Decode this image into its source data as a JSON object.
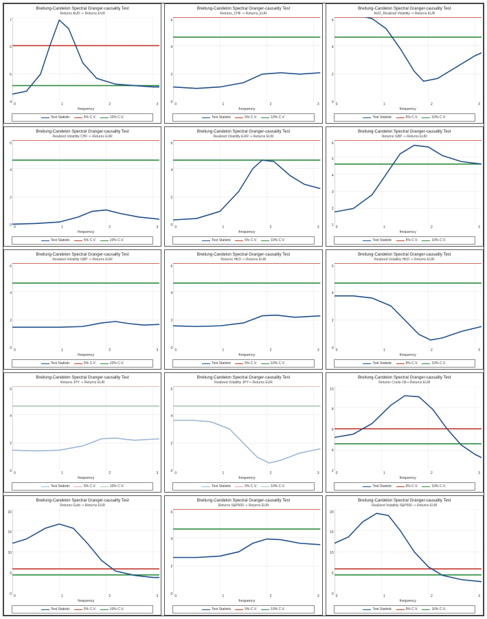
{
  "global": {
    "main_title": "Breitung-Candelon Spectral Granger-causality Test",
    "xlabel": "frequency",
    "legend": {
      "test_stat": "Test Statistic",
      "cv5": "5% C.V.",
      "cv10": "10% C.V."
    },
    "colors": {
      "test": "#1f4e8c",
      "cv5": "#c0392b",
      "cv10": "#2e8b3d",
      "test_faded": "#9db6d6",
      "cv5_faded": "#d9a6a1",
      "cv10_faded": "#a9c9ad",
      "grid": "#e8e8e8",
      "axis": "#888888",
      "text": "#333333",
      "background": "#ffffff"
    },
    "line_width": 1.4,
    "xlim": [
      0,
      3.14
    ],
    "xticks": [
      0,
      1,
      2,
      3
    ],
    "title_fontsize": 6,
    "subtitle_fontsize": 5,
    "tick_fontsize": 5,
    "legend_fontsize": 5
  },
  "panels": [
    {
      "subtitle": "Returns AUD ⇒ Returns EUR",
      "ylim": [
        4,
        7
      ],
      "yticks": [
        4,
        5,
        6,
        7
      ],
      "cv5": 6.0,
      "cv10": 4.6,
      "faded": false,
      "curve": [
        [
          0,
          4.3
        ],
        [
          0.3,
          4.4
        ],
        [
          0.6,
          5.0
        ],
        [
          0.8,
          6.0
        ],
        [
          1.0,
          6.9
        ],
        [
          1.2,
          6.6
        ],
        [
          1.5,
          5.4
        ],
        [
          1.8,
          4.85
        ],
        [
          2.2,
          4.65
        ],
        [
          2.6,
          4.6
        ],
        [
          3.0,
          4.55
        ],
        [
          3.14,
          4.55
        ]
      ]
    },
    {
      "subtitle": "Returns_CHF ⇒ Returns_EUR",
      "ylim": [
        0,
        6
      ],
      "yticks": [
        0,
        2,
        4,
        6
      ],
      "cv5": 6.0,
      "cv10": 4.6,
      "faded": false,
      "curve": [
        [
          0,
          1.1
        ],
        [
          0.5,
          1.0
        ],
        [
          1.0,
          1.1
        ],
        [
          1.5,
          1.4
        ],
        [
          1.9,
          2.0
        ],
        [
          2.3,
          2.1
        ],
        [
          2.7,
          2.0
        ],
        [
          3.14,
          2.1
        ]
      ]
    },
    {
      "subtitle": "AUD_Realized Volatility ⇒ Returns EUR",
      "ylim": [
        0,
        6
      ],
      "yticks": [
        0,
        2,
        4,
        6
      ],
      "cv5": 6.0,
      "cv10": 4.6,
      "faded": false,
      "curve": [
        [
          0,
          6.3
        ],
        [
          0.4,
          6.2
        ],
        [
          0.8,
          5.9
        ],
        [
          1.1,
          5.2
        ],
        [
          1.4,
          3.8
        ],
        [
          1.7,
          2.2
        ],
        [
          1.9,
          1.5
        ],
        [
          2.2,
          1.7
        ],
        [
          2.6,
          2.5
        ],
        [
          3.0,
          3.3
        ],
        [
          3.14,
          3.5
        ]
      ]
    },
    {
      "subtitle": "Realized Volatility CHF ⇒ Returns EUR",
      "ylim": [
        0,
        6
      ],
      "yticks": [
        0,
        2,
        4,
        6
      ],
      "cv5": 6.0,
      "cv10": 4.6,
      "faded": false,
      "curve": [
        [
          0,
          0.1
        ],
        [
          0.5,
          0.15
        ],
        [
          1.0,
          0.25
        ],
        [
          1.4,
          0.6
        ],
        [
          1.7,
          1.0
        ],
        [
          2.0,
          1.1
        ],
        [
          2.3,
          0.85
        ],
        [
          2.7,
          0.6
        ],
        [
          3.14,
          0.45
        ]
      ]
    },
    {
      "subtitle": "Realized Volatility EUR ⇒ Returns EUR",
      "ylim": [
        0,
        6
      ],
      "yticks": [
        0,
        2,
        4,
        6
      ],
      "cv5": 6.0,
      "cv10": 4.6,
      "faded": false,
      "curve": [
        [
          0,
          0.4
        ],
        [
          0.5,
          0.5
        ],
        [
          1.0,
          1.0
        ],
        [
          1.4,
          2.4
        ],
        [
          1.7,
          4.0
        ],
        [
          1.9,
          4.6
        ],
        [
          2.15,
          4.5
        ],
        [
          2.5,
          3.5
        ],
        [
          2.8,
          2.9
        ],
        [
          3.14,
          2.6
        ]
      ]
    },
    {
      "subtitle": "Returns GBP ⇒ Returns EUR",
      "ylim": [
        1,
        6
      ],
      "yticks": [
        1,
        2,
        3,
        4,
        5,
        6
      ],
      "cv5": 6.0,
      "cv10": 4.6,
      "faded": false,
      "curve": [
        [
          0,
          1.8
        ],
        [
          0.4,
          2.0
        ],
        [
          0.8,
          2.8
        ],
        [
          1.1,
          4.0
        ],
        [
          1.4,
          5.2
        ],
        [
          1.7,
          5.7
        ],
        [
          2.0,
          5.6
        ],
        [
          2.3,
          5.1
        ],
        [
          2.7,
          4.75
        ],
        [
          3.14,
          4.6
        ]
      ]
    },
    {
      "subtitle": "Realized Volatility GBP ⇒ Returns EUR",
      "ylim": [
        0,
        6
      ],
      "yticks": [
        0,
        2,
        4,
        6
      ],
      "cv5": 6.0,
      "cv10": 4.6,
      "faded": false,
      "curve": [
        [
          0,
          1.5
        ],
        [
          0.5,
          1.5
        ],
        [
          1.0,
          1.5
        ],
        [
          1.5,
          1.55
        ],
        [
          1.9,
          1.8
        ],
        [
          2.2,
          1.9
        ],
        [
          2.5,
          1.75
        ],
        [
          2.8,
          1.65
        ],
        [
          3.14,
          1.7
        ]
      ]
    },
    {
      "subtitle": "Returns HKD ⇒ Returns EUR",
      "ylim": [
        0,
        6
      ],
      "yticks": [
        0,
        2,
        4,
        6
      ],
      "cv5": 6.0,
      "cv10": 4.6,
      "faded": false,
      "curve": [
        [
          0,
          1.6
        ],
        [
          0.5,
          1.55
        ],
        [
          1.0,
          1.6
        ],
        [
          1.5,
          1.8
        ],
        [
          1.9,
          2.3
        ],
        [
          2.2,
          2.35
        ],
        [
          2.6,
          2.2
        ],
        [
          3.14,
          2.3
        ]
      ]
    },
    {
      "subtitle": "Realized Volatility HKD ⇒ Returns EUR",
      "ylim": [
        0,
        6
      ],
      "yticks": [
        0,
        2,
        4,
        6
      ],
      "cv5": 6.0,
      "cv10": 4.6,
      "faded": false,
      "curve": [
        [
          0,
          3.7
        ],
        [
          0.4,
          3.7
        ],
        [
          0.8,
          3.55
        ],
        [
          1.2,
          3.0
        ],
        [
          1.5,
          2.0
        ],
        [
          1.8,
          1.0
        ],
        [
          2.05,
          0.6
        ],
        [
          2.3,
          0.75
        ],
        [
          2.7,
          1.2
        ],
        [
          3.14,
          1.55
        ]
      ]
    },
    {
      "subtitle": "Returns JPY ⇒ Returns EUR",
      "ylim": [
        0,
        6
      ],
      "yticks": [
        0,
        2,
        4,
        6
      ],
      "cv5": 6.0,
      "cv10": 4.6,
      "faded": true,
      "curve": [
        [
          0,
          1.5
        ],
        [
          0.5,
          1.45
        ],
        [
          1.0,
          1.5
        ],
        [
          1.5,
          1.8
        ],
        [
          1.9,
          2.3
        ],
        [
          2.2,
          2.35
        ],
        [
          2.6,
          2.2
        ],
        [
          3.14,
          2.3
        ]
      ]
    },
    {
      "subtitle": "Realized Volatility JPY⇒ Returns EUR",
      "ylim": [
        0,
        6
      ],
      "yticks": [
        0,
        2,
        4,
        6
      ],
      "cv5": 6.0,
      "cv10": 4.6,
      "faded": true,
      "curve": [
        [
          0,
          3.6
        ],
        [
          0.4,
          3.6
        ],
        [
          0.8,
          3.5
        ],
        [
          1.2,
          3.0
        ],
        [
          1.5,
          2.0
        ],
        [
          1.8,
          1.0
        ],
        [
          2.05,
          0.6
        ],
        [
          2.3,
          0.8
        ],
        [
          2.7,
          1.3
        ],
        [
          3.14,
          1.6
        ]
      ]
    },
    {
      "subtitle": "Returns Crude Oil⇒ Returns EUR",
      "ylim": [
        2,
        10
      ],
      "yticks": [
        2,
        4,
        6,
        8,
        10
      ],
      "cv5": 6.0,
      "cv10": 4.6,
      "faded": false,
      "curve": [
        [
          0,
          5.2
        ],
        [
          0.4,
          5.5
        ],
        [
          0.8,
          6.5
        ],
        [
          1.2,
          8.2
        ],
        [
          1.5,
          9.1
        ],
        [
          1.8,
          9.0
        ],
        [
          2.1,
          7.8
        ],
        [
          2.4,
          6.0
        ],
        [
          2.7,
          4.5
        ],
        [
          3.0,
          3.6
        ],
        [
          3.14,
          3.3
        ]
      ]
    },
    {
      "subtitle": "Returns Gold ⇒ Returns EUR",
      "ylim": [
        0,
        20
      ],
      "yticks": [
        0,
        5,
        10,
        15,
        20
      ],
      "cv5": 6.0,
      "cv10": 4.6,
      "faded": false,
      "curve": [
        [
          0,
          12
        ],
        [
          0.3,
          13
        ],
        [
          0.7,
          15.5
        ],
        [
          1.0,
          16.5
        ],
        [
          1.3,
          15.5
        ],
        [
          1.6,
          12
        ],
        [
          1.9,
          8
        ],
        [
          2.2,
          5.5
        ],
        [
          2.6,
          4.5
        ],
        [
          3.0,
          4.0
        ],
        [
          3.14,
          4.0
        ]
      ]
    },
    {
      "subtitle": "Returns S&P500 ⇒ Returns EUR",
      "ylim": [
        0,
        6
      ],
      "yticks": [
        0,
        2,
        4,
        6
      ],
      "cv5": 6.0,
      "cv10": 4.6,
      "faded": false,
      "curve": [
        [
          0,
          2.6
        ],
        [
          0.5,
          2.6
        ],
        [
          1.0,
          2.7
        ],
        [
          1.4,
          3.0
        ],
        [
          1.7,
          3.6
        ],
        [
          2.0,
          3.9
        ],
        [
          2.3,
          3.85
        ],
        [
          2.7,
          3.6
        ],
        [
          3.14,
          3.5
        ]
      ]
    },
    {
      "subtitle": "Realized Volatility S&P500 ⇒ Returns EUR",
      "ylim": [
        0,
        20
      ],
      "yticks": [
        0,
        5,
        10,
        15,
        20
      ],
      "cv5": 6.0,
      "cv10": 4.6,
      "faded": false,
      "curve": [
        [
          0,
          12
        ],
        [
          0.3,
          13.5
        ],
        [
          0.6,
          17
        ],
        [
          0.9,
          19
        ],
        [
          1.15,
          18.5
        ],
        [
          1.4,
          15
        ],
        [
          1.7,
          10
        ],
        [
          2.0,
          6.5
        ],
        [
          2.3,
          4.5
        ],
        [
          2.7,
          3.5
        ],
        [
          3.14,
          3.0
        ]
      ]
    }
  ]
}
